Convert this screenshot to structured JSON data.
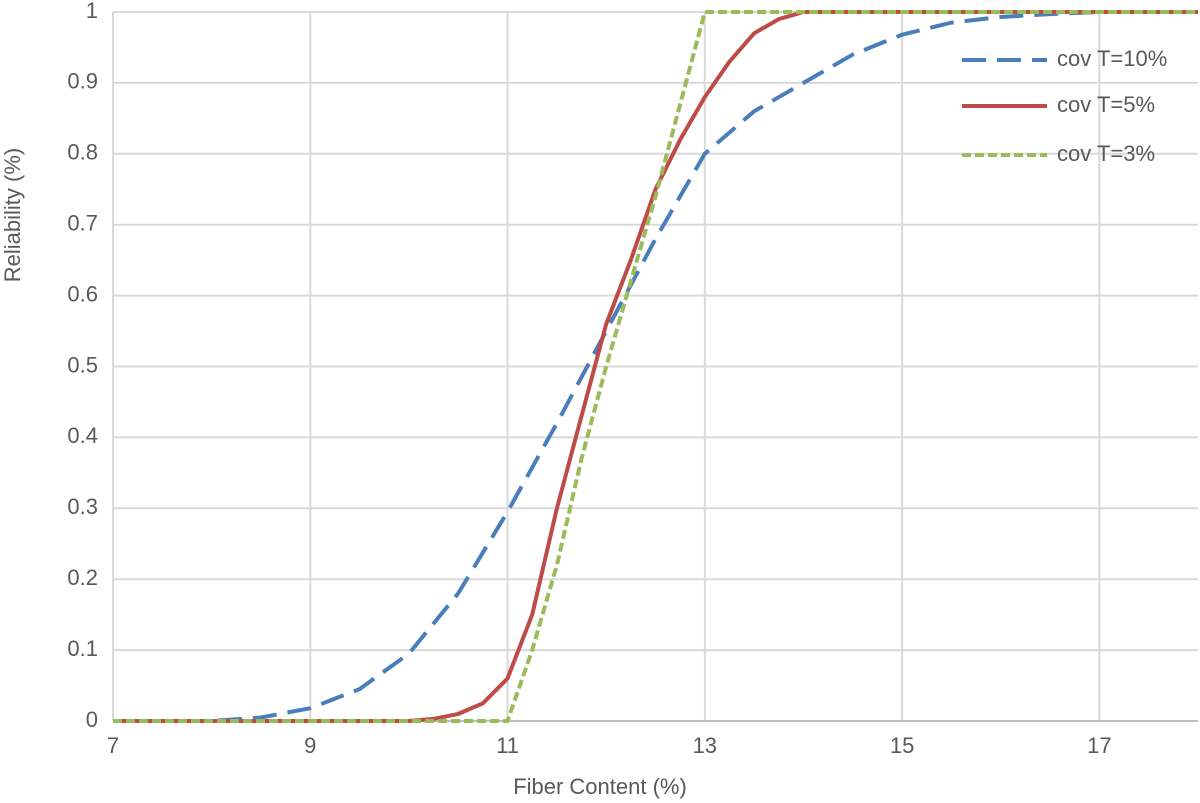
{
  "chart_data": {
    "type": "line",
    "x_label": "Fiber Content  (%)",
    "y_label": "Reliability  (%)",
    "xlim": [
      7,
      18
    ],
    "xticks": [
      7,
      9,
      11,
      13,
      15,
      17
    ],
    "ylim": [
      0,
      1
    ],
    "yticks": [
      0,
      0.1,
      0.2,
      0.3,
      0.4,
      0.5,
      0.6,
      0.7,
      0.8,
      0.9,
      1
    ],
    "grid": true,
    "legend": "upper right",
    "series": [
      {
        "name": "cov T=10%",
        "color": "#4a7ebb",
        "line_style": "dashed",
        "x": [
          7,
          7.5,
          8,
          8.5,
          9,
          9.5,
          10,
          10.5,
          11,
          11.5,
          12,
          12.5,
          13,
          13.5,
          14,
          14.5,
          15,
          15.5,
          16,
          16.5,
          17,
          17.5,
          18
        ],
        "values": [
          0,
          0,
          0,
          0.005,
          0.018,
          0.045,
          0.095,
          0.18,
          0.295,
          0.42,
          0.55,
          0.68,
          0.8,
          0.86,
          0.9,
          0.94,
          0.968,
          0.985,
          0.993,
          0.997,
          1,
          1,
          1
        ]
      },
      {
        "name": "cov T=5%",
        "color": "#be4b48",
        "line_style": "solid",
        "x": [
          7,
          8,
          9,
          10,
          10.25,
          10.5,
          10.75,
          11,
          11.25,
          11.5,
          11.75,
          12,
          12.25,
          12.5,
          12.75,
          13,
          13.25,
          13.5,
          13.75,
          14,
          15,
          16,
          17,
          18
        ],
        "values": [
          0,
          0,
          0,
          0,
          0.003,
          0.01,
          0.025,
          0.06,
          0.15,
          0.3,
          0.43,
          0.56,
          0.65,
          0.75,
          0.82,
          0.88,
          0.93,
          0.97,
          0.99,
          1,
          1,
          1,
          1,
          1
        ]
      },
      {
        "name": "cov T=3%",
        "color": "#9bbb59",
        "line_style": "dotted",
        "x": [
          7,
          8,
          9,
          10,
          11,
          11.25,
          11.5,
          11.75,
          12,
          12.25,
          12.5,
          12.75,
          13,
          14,
          15,
          16,
          17,
          18
        ],
        "values": [
          0,
          0,
          0,
          0,
          0,
          0.1,
          0.22,
          0.37,
          0.5,
          0.62,
          0.74,
          0.87,
          1,
          1,
          1,
          1,
          1,
          1
        ]
      }
    ]
  }
}
